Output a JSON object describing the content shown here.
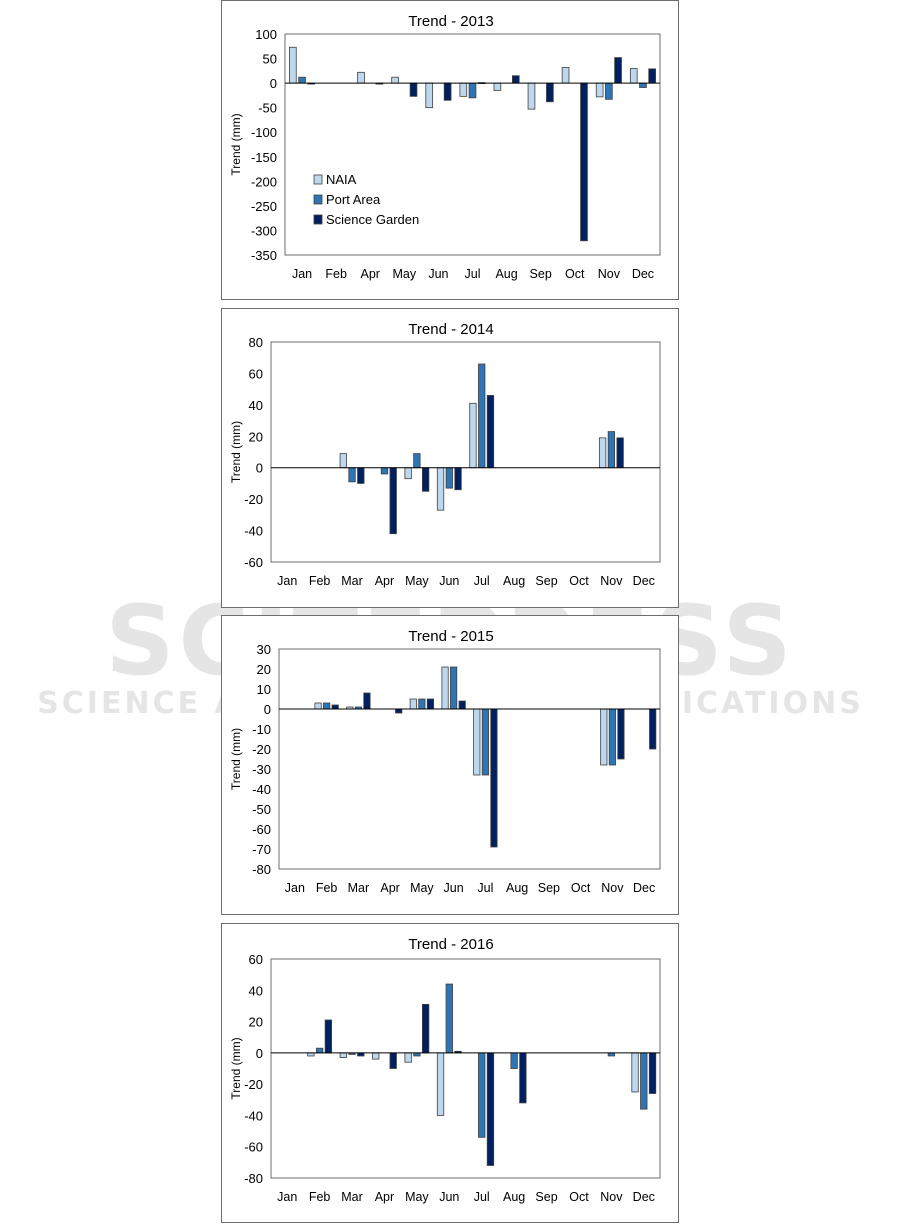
{
  "colors": {
    "NAIA": "#bdd7ee",
    "Port Area": "#2e75b6",
    "Science Garden": "#002060"
  },
  "watermark": {
    "line1": "SCITEPRESS",
    "line2": "SCIENCE AND TECHNOLOGY PUBLICATIONS"
  },
  "chart_data": [
    {
      "type": "bar",
      "title": "Trend - 2013",
      "ylabel": "Trend (mm)",
      "xlabel": "",
      "ylim": [
        -350,
        100
      ],
      "yticks": [
        100,
        50,
        0,
        -50,
        -100,
        -150,
        -200,
        -250,
        -300,
        -350
      ],
      "legend": "bottom-left",
      "categories": [
        "Jan",
        "Feb",
        "Apr",
        "May",
        "Jun",
        "Jul",
        "Aug",
        "Sep",
        "Oct",
        "Nov",
        "Dec"
      ],
      "series": [
        {
          "name": "NAIA",
          "values": [
            73,
            0,
            22,
            12,
            -50,
            -27,
            -15,
            -53,
            32,
            -28,
            30
          ]
        },
        {
          "name": "Port Area",
          "values": [
            12,
            0,
            0,
            0,
            0,
            -30,
            0,
            0,
            0,
            -33,
            -9
          ]
        },
        {
          "name": "Science Garden",
          "values": [
            -1,
            0,
            -1,
            -27,
            -35,
            1,
            15,
            -38,
            -321,
            52,
            29
          ]
        }
      ]
    },
    {
      "type": "bar",
      "title": "Trend - 2014",
      "ylabel": "Trend (mm)",
      "xlabel": "",
      "ylim": [
        -60,
        80
      ],
      "yticks": [
        80,
        60,
        40,
        20,
        0,
        -20,
        -40,
        -60
      ],
      "categories": [
        "Jan",
        "Feb",
        "Mar",
        "Apr",
        "May",
        "Jun",
        "Jul",
        "Aug",
        "Sep",
        "Oct",
        "Nov",
        "Dec"
      ],
      "series": [
        {
          "name": "NAIA",
          "values": [
            0,
            0,
            9,
            0,
            -7,
            -27,
            41,
            0,
            0,
            0,
            19,
            0
          ]
        },
        {
          "name": "Port Area",
          "values": [
            0,
            0,
            -9,
            -4,
            9,
            -13,
            66,
            0,
            0,
            0,
            23,
            0
          ]
        },
        {
          "name": "Science Garden",
          "values": [
            0,
            0,
            -10,
            -42,
            -15,
            -14,
            46,
            0,
            0,
            0,
            19,
            0
          ]
        }
      ]
    },
    {
      "type": "bar",
      "title": "Trend - 2015",
      "ylabel": "Trend (mm)",
      "xlabel": "",
      "ylim": [
        -80,
        30
      ],
      "yticks": [
        30,
        20,
        10,
        0,
        -10,
        -20,
        -30,
        -40,
        -50,
        -60,
        -70,
        -80
      ],
      "categories": [
        "Jan",
        "Feb",
        "Mar",
        "Apr",
        "May",
        "Jun",
        "Jul",
        "Aug",
        "Sep",
        "Oct",
        "Nov",
        "Dec"
      ],
      "series": [
        {
          "name": "NAIA",
          "values": [
            0,
            3,
            1,
            0,
            5,
            21,
            -33,
            0,
            0,
            0,
            -28,
            0
          ]
        },
        {
          "name": "Port Area",
          "values": [
            0,
            3,
            1,
            0,
            5,
            21,
            -33,
            0,
            0,
            0,
            -28,
            0
          ]
        },
        {
          "name": "Science Garden",
          "values": [
            0,
            2,
            8,
            -2,
            5,
            4,
            -69,
            0,
            0,
            0,
            -25,
            -20
          ]
        }
      ]
    },
    {
      "type": "bar",
      "title": "Trend - 2016",
      "ylabel": "Trend (mm)",
      "xlabel": "",
      "ylim": [
        -80,
        60
      ],
      "yticks": [
        60,
        40,
        20,
        0,
        -20,
        -40,
        -60,
        -80
      ],
      "categories": [
        "Jan",
        "Feb",
        "Mar",
        "Apr",
        "May",
        "Jun",
        "Jul",
        "Aug",
        "Sep",
        "Oct",
        "Nov",
        "Dec"
      ],
      "series": [
        {
          "name": "NAIA",
          "values": [
            0,
            -2,
            -3,
            -4,
            -6,
            -40,
            0,
            0,
            0,
            0,
            0,
            -25
          ]
        },
        {
          "name": "Port Area",
          "values": [
            0,
            3,
            -1,
            0,
            -2,
            44,
            -54,
            -10,
            0,
            0,
            -2,
            -36
          ]
        },
        {
          "name": "Science Garden",
          "values": [
            0,
            21,
            -2,
            -10,
            31,
            1,
            -72,
            -32,
            0,
            0,
            0,
            -26
          ]
        }
      ]
    }
  ]
}
